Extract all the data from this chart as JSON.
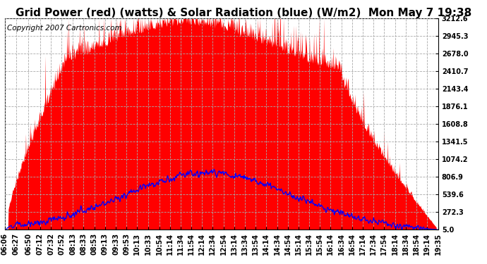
{
  "title": "Grid Power (red) (watts) & Solar Radiation (blue) (W/m2)  Mon May 7 19:38",
  "copyright": "Copyright 2007 Cartronics.com",
  "background_color": "#ffffff",
  "plot_bg_color": "#ffffff",
  "grid_color": "#aaaaaa",
  "yticks": [
    5.0,
    272.3,
    539.6,
    806.9,
    1074.2,
    1341.5,
    1608.8,
    1876.1,
    2143.4,
    2410.7,
    2678.0,
    2945.3,
    3212.6
  ],
  "ymin": 5.0,
  "ymax": 3212.6,
  "xtick_labels": [
    "06:06",
    "06:27",
    "06:50",
    "07:12",
    "07:32",
    "07:52",
    "08:13",
    "08:33",
    "08:53",
    "09:13",
    "09:33",
    "09:53",
    "10:13",
    "10:33",
    "10:54",
    "11:14",
    "11:34",
    "11:54",
    "12:14",
    "12:34",
    "12:54",
    "13:14",
    "13:34",
    "13:54",
    "14:14",
    "14:34",
    "14:54",
    "15:14",
    "15:34",
    "15:54",
    "16:14",
    "16:34",
    "16:54",
    "17:14",
    "17:34",
    "17:54",
    "18:14",
    "18:34",
    "18:54",
    "19:14",
    "19:35"
  ],
  "fill_color": "#ff0000",
  "line_color": "#0000ff",
  "title_fontsize": 11,
  "copyright_fontsize": 7.5,
  "tick_fontsize": 7
}
